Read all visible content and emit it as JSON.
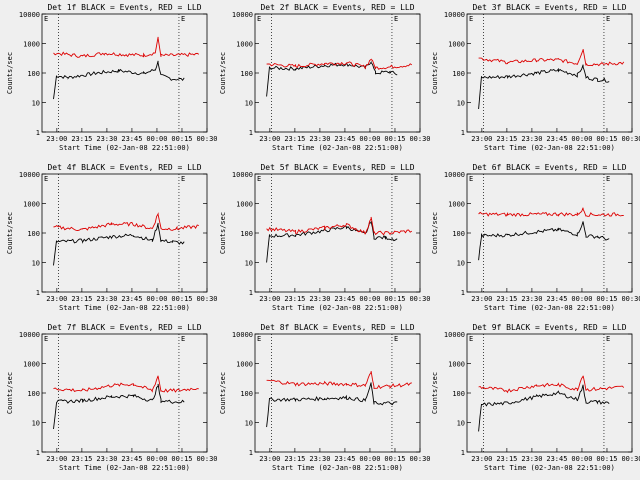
{
  "panels_meta": {
    "ylabel": "Counts/sec",
    "xlabel": "Start Time (02-Jan-08 22:51:00)",
    "xticks": [
      "23:00",
      "23:15",
      "23:30",
      "23:45",
      "00:00",
      "00:15",
      "00:30"
    ],
    "yticks": [
      "1",
      "10",
      "100",
      "1000",
      "10000"
    ]
  },
  "chart_data": [
    {
      "type": "line",
      "title": "Det 1f BLACK = Events, RED = LLD",
      "ylim": [
        1,
        10000
      ],
      "yscale": "log",
      "x_range": [
        "22:51",
        "00:30"
      ],
      "series": [
        {
          "color": "#000000",
          "values": [
            [
              0,
              13
            ],
            [
              0.02,
              80
            ],
            [
              0.1,
              70
            ],
            [
              0.3,
              100
            ],
            [
              0.45,
              120
            ],
            [
              0.62,
              95
            ],
            [
              0.7,
              130
            ],
            [
              0.72,
              240
            ],
            [
              0.74,
              80
            ],
            [
              0.8,
              65
            ],
            [
              0.9,
              60
            ]
          ]
        },
        {
          "color": "#dd0000",
          "values": [
            [
              0,
              480
            ],
            [
              0.2,
              370
            ],
            [
              0.35,
              470
            ],
            [
              0.5,
              420
            ],
            [
              0.62,
              400
            ],
            [
              0.7,
              480
            ],
            [
              0.72,
              1500
            ],
            [
              0.74,
              390
            ],
            [
              0.85,
              400
            ],
            [
              1.0,
              430
            ]
          ]
        }
      ]
    },
    {
      "type": "line",
      "title": "Det 2f BLACK = Events, RED = LLD",
      "ylim": [
        1,
        10000
      ],
      "yscale": "log",
      "x_range": [
        "22:51",
        "00:30"
      ],
      "series": [
        {
          "color": "#000000",
          "values": [
            [
              0,
              16
            ],
            [
              0.02,
              150
            ],
            [
              0.2,
              140
            ],
            [
              0.4,
              180
            ],
            [
              0.55,
              200
            ],
            [
              0.68,
              150
            ],
            [
              0.72,
              250
            ],
            [
              0.75,
              100
            ],
            [
              0.85,
              110
            ],
            [
              0.9,
              90
            ]
          ]
        },
        {
          "color": "#dd0000",
          "values": [
            [
              0,
              200
            ],
            [
              0.2,
              170
            ],
            [
              0.4,
              210
            ],
            [
              0.55,
              220
            ],
            [
              0.68,
              160
            ],
            [
              0.72,
              300
            ],
            [
              0.75,
              150
            ],
            [
              0.85,
              160
            ],
            [
              1.0,
              190
            ]
          ]
        }
      ]
    },
    {
      "type": "line",
      "title": "Det 3f BLACK = Events, RED = LLD",
      "ylim": [
        1,
        10000
      ],
      "yscale": "log",
      "x_range": [
        "22:51",
        "00:30"
      ],
      "series": [
        {
          "color": "#000000",
          "values": [
            [
              0,
              6
            ],
            [
              0.02,
              70
            ],
            [
              0.2,
              75
            ],
            [
              0.4,
              100
            ],
            [
              0.55,
              125
            ],
            [
              0.68,
              85
            ],
            [
              0.72,
              170
            ],
            [
              0.74,
              70
            ],
            [
              0.82,
              60
            ],
            [
              0.9,
              55
            ]
          ]
        },
        {
          "color": "#dd0000",
          "values": [
            [
              0,
              320
            ],
            [
              0.2,
              230
            ],
            [
              0.4,
              270
            ],
            [
              0.55,
              280
            ],
            [
              0.68,
              210
            ],
            [
              0.72,
              650
            ],
            [
              0.74,
              200
            ],
            [
              0.85,
              200
            ],
            [
              1.0,
              220
            ]
          ]
        }
      ]
    },
    {
      "type": "line",
      "title": "Det 4f BLACK = Events, RED = LLD",
      "ylim": [
        1,
        10000
      ],
      "yscale": "log",
      "x_range": [
        "22:51",
        "00:30"
      ],
      "series": [
        {
          "color": "#000000",
          "values": [
            [
              0,
              8
            ],
            [
              0.02,
              50
            ],
            [
              0.2,
              55
            ],
            [
              0.4,
              75
            ],
            [
              0.55,
              85
            ],
            [
              0.68,
              55
            ],
            [
              0.72,
              200
            ],
            [
              0.74,
              55
            ],
            [
              0.82,
              50
            ],
            [
              0.9,
              45
            ]
          ]
        },
        {
          "color": "#dd0000",
          "values": [
            [
              0,
              160
            ],
            [
              0.2,
              130
            ],
            [
              0.4,
              200
            ],
            [
              0.55,
              200
            ],
            [
              0.68,
              140
            ],
            [
              0.72,
              450
            ],
            [
              0.74,
              140
            ],
            [
              0.85,
              140
            ],
            [
              1.0,
              170
            ]
          ]
        }
      ]
    },
    {
      "type": "line",
      "title": "Det 5f BLACK = Events, RED = LLD",
      "ylim": [
        1,
        10000
      ],
      "yscale": "log",
      "x_range": [
        "22:51",
        "00:30"
      ],
      "series": [
        {
          "color": "#000000",
          "values": [
            [
              0,
              10
            ],
            [
              0.02,
              80
            ],
            [
              0.2,
              85
            ],
            [
              0.4,
              120
            ],
            [
              0.55,
              160
            ],
            [
              0.68,
              90
            ],
            [
              0.72,
              250
            ],
            [
              0.74,
              70
            ],
            [
              0.82,
              70
            ],
            [
              0.9,
              60
            ]
          ]
        },
        {
          "color": "#dd0000",
          "values": [
            [
              0,
              140
            ],
            [
              0.2,
              110
            ],
            [
              0.4,
              150
            ],
            [
              0.55,
              190
            ],
            [
              0.68,
              100
            ],
            [
              0.72,
              320
            ],
            [
              0.74,
              100
            ],
            [
              0.85,
              100
            ],
            [
              1.0,
              120
            ]
          ]
        }
      ]
    },
    {
      "type": "line",
      "title": "Det 6f BLACK = Events, RED = LLD",
      "ylim": [
        1,
        10000
      ],
      "yscale": "log",
      "x_range": [
        "22:51",
        "00:30"
      ],
      "series": [
        {
          "color": "#000000",
          "values": [
            [
              0,
              12
            ],
            [
              0.02,
              80
            ],
            [
              0.2,
              85
            ],
            [
              0.4,
              110
            ],
            [
              0.55,
              130
            ],
            [
              0.68,
              90
            ],
            [
              0.72,
              230
            ],
            [
              0.74,
              80
            ],
            [
              0.82,
              75
            ],
            [
              0.9,
              60
            ]
          ]
        },
        {
          "color": "#dd0000",
          "values": [
            [
              0,
              440
            ],
            [
              0.2,
              420
            ],
            [
              0.4,
              430
            ],
            [
              0.55,
              440
            ],
            [
              0.68,
              420
            ],
            [
              0.72,
              650
            ],
            [
              0.74,
              420
            ],
            [
              0.85,
              420
            ],
            [
              1.0,
              430
            ]
          ]
        }
      ]
    },
    {
      "type": "line",
      "title": "Det 7f BLACK = Events, RED = LLD",
      "ylim": [
        1,
        10000
      ],
      "yscale": "log",
      "x_range": [
        "22:51",
        "00:30"
      ],
      "series": [
        {
          "color": "#000000",
          "values": [
            [
              0,
              6
            ],
            [
              0.02,
              50
            ],
            [
              0.2,
              55
            ],
            [
              0.4,
              75
            ],
            [
              0.55,
              80
            ],
            [
              0.68,
              55
            ],
            [
              0.72,
              180
            ],
            [
              0.74,
              55
            ],
            [
              0.82,
              50
            ],
            [
              0.9,
              50
            ]
          ]
        },
        {
          "color": "#dd0000",
          "values": [
            [
              0,
              140
            ],
            [
              0.2,
              120
            ],
            [
              0.4,
              180
            ],
            [
              0.55,
              200
            ],
            [
              0.68,
              120
            ],
            [
              0.72,
              380
            ],
            [
              0.74,
              120
            ],
            [
              0.85,
              120
            ],
            [
              1.0,
              150
            ]
          ]
        }
      ]
    },
    {
      "type": "line",
      "title": "Det 8f BLACK = Events, RED = LLD",
      "ylim": [
        1,
        10000
      ],
      "yscale": "log",
      "x_range": [
        "22:51",
        "00:30"
      ],
      "series": [
        {
          "color": "#000000",
          "values": [
            [
              0,
              7
            ],
            [
              0.02,
              60
            ],
            [
              0.2,
              60
            ],
            [
              0.4,
              65
            ],
            [
              0.55,
              70
            ],
            [
              0.68,
              55
            ],
            [
              0.72,
              200
            ],
            [
              0.74,
              45
            ],
            [
              0.82,
              45
            ],
            [
              0.9,
              45
            ]
          ]
        },
        {
          "color": "#dd0000",
          "values": [
            [
              0,
              270
            ],
            [
              0.2,
              200
            ],
            [
              0.4,
              210
            ],
            [
              0.55,
              200
            ],
            [
              0.68,
              180
            ],
            [
              0.72,
              500
            ],
            [
              0.74,
              160
            ],
            [
              0.85,
              170
            ],
            [
              1.0,
              200
            ]
          ]
        }
      ]
    },
    {
      "type": "line",
      "title": "Det 9f BLACK = Events, RED = LLD",
      "ylim": [
        1,
        10000
      ],
      "yscale": "log",
      "x_range": [
        "22:51",
        "00:30"
      ],
      "series": [
        {
          "color": "#000000",
          "values": [
            [
              0,
              5
            ],
            [
              0.02,
              40
            ],
            [
              0.2,
              45
            ],
            [
              0.4,
              75
            ],
            [
              0.55,
              100
            ],
            [
              0.68,
              60
            ],
            [
              0.72,
              170
            ],
            [
              0.74,
              50
            ],
            [
              0.82,
              50
            ],
            [
              0.9,
              45
            ]
          ]
        },
        {
          "color": "#dd0000",
          "values": [
            [
              0,
              160
            ],
            [
              0.2,
              120
            ],
            [
              0.4,
              180
            ],
            [
              0.55,
              190
            ],
            [
              0.68,
              130
            ],
            [
              0.72,
              420
            ],
            [
              0.74,
              130
            ],
            [
              0.85,
              140
            ],
            [
              1.0,
              160
            ]
          ]
        }
      ]
    }
  ]
}
